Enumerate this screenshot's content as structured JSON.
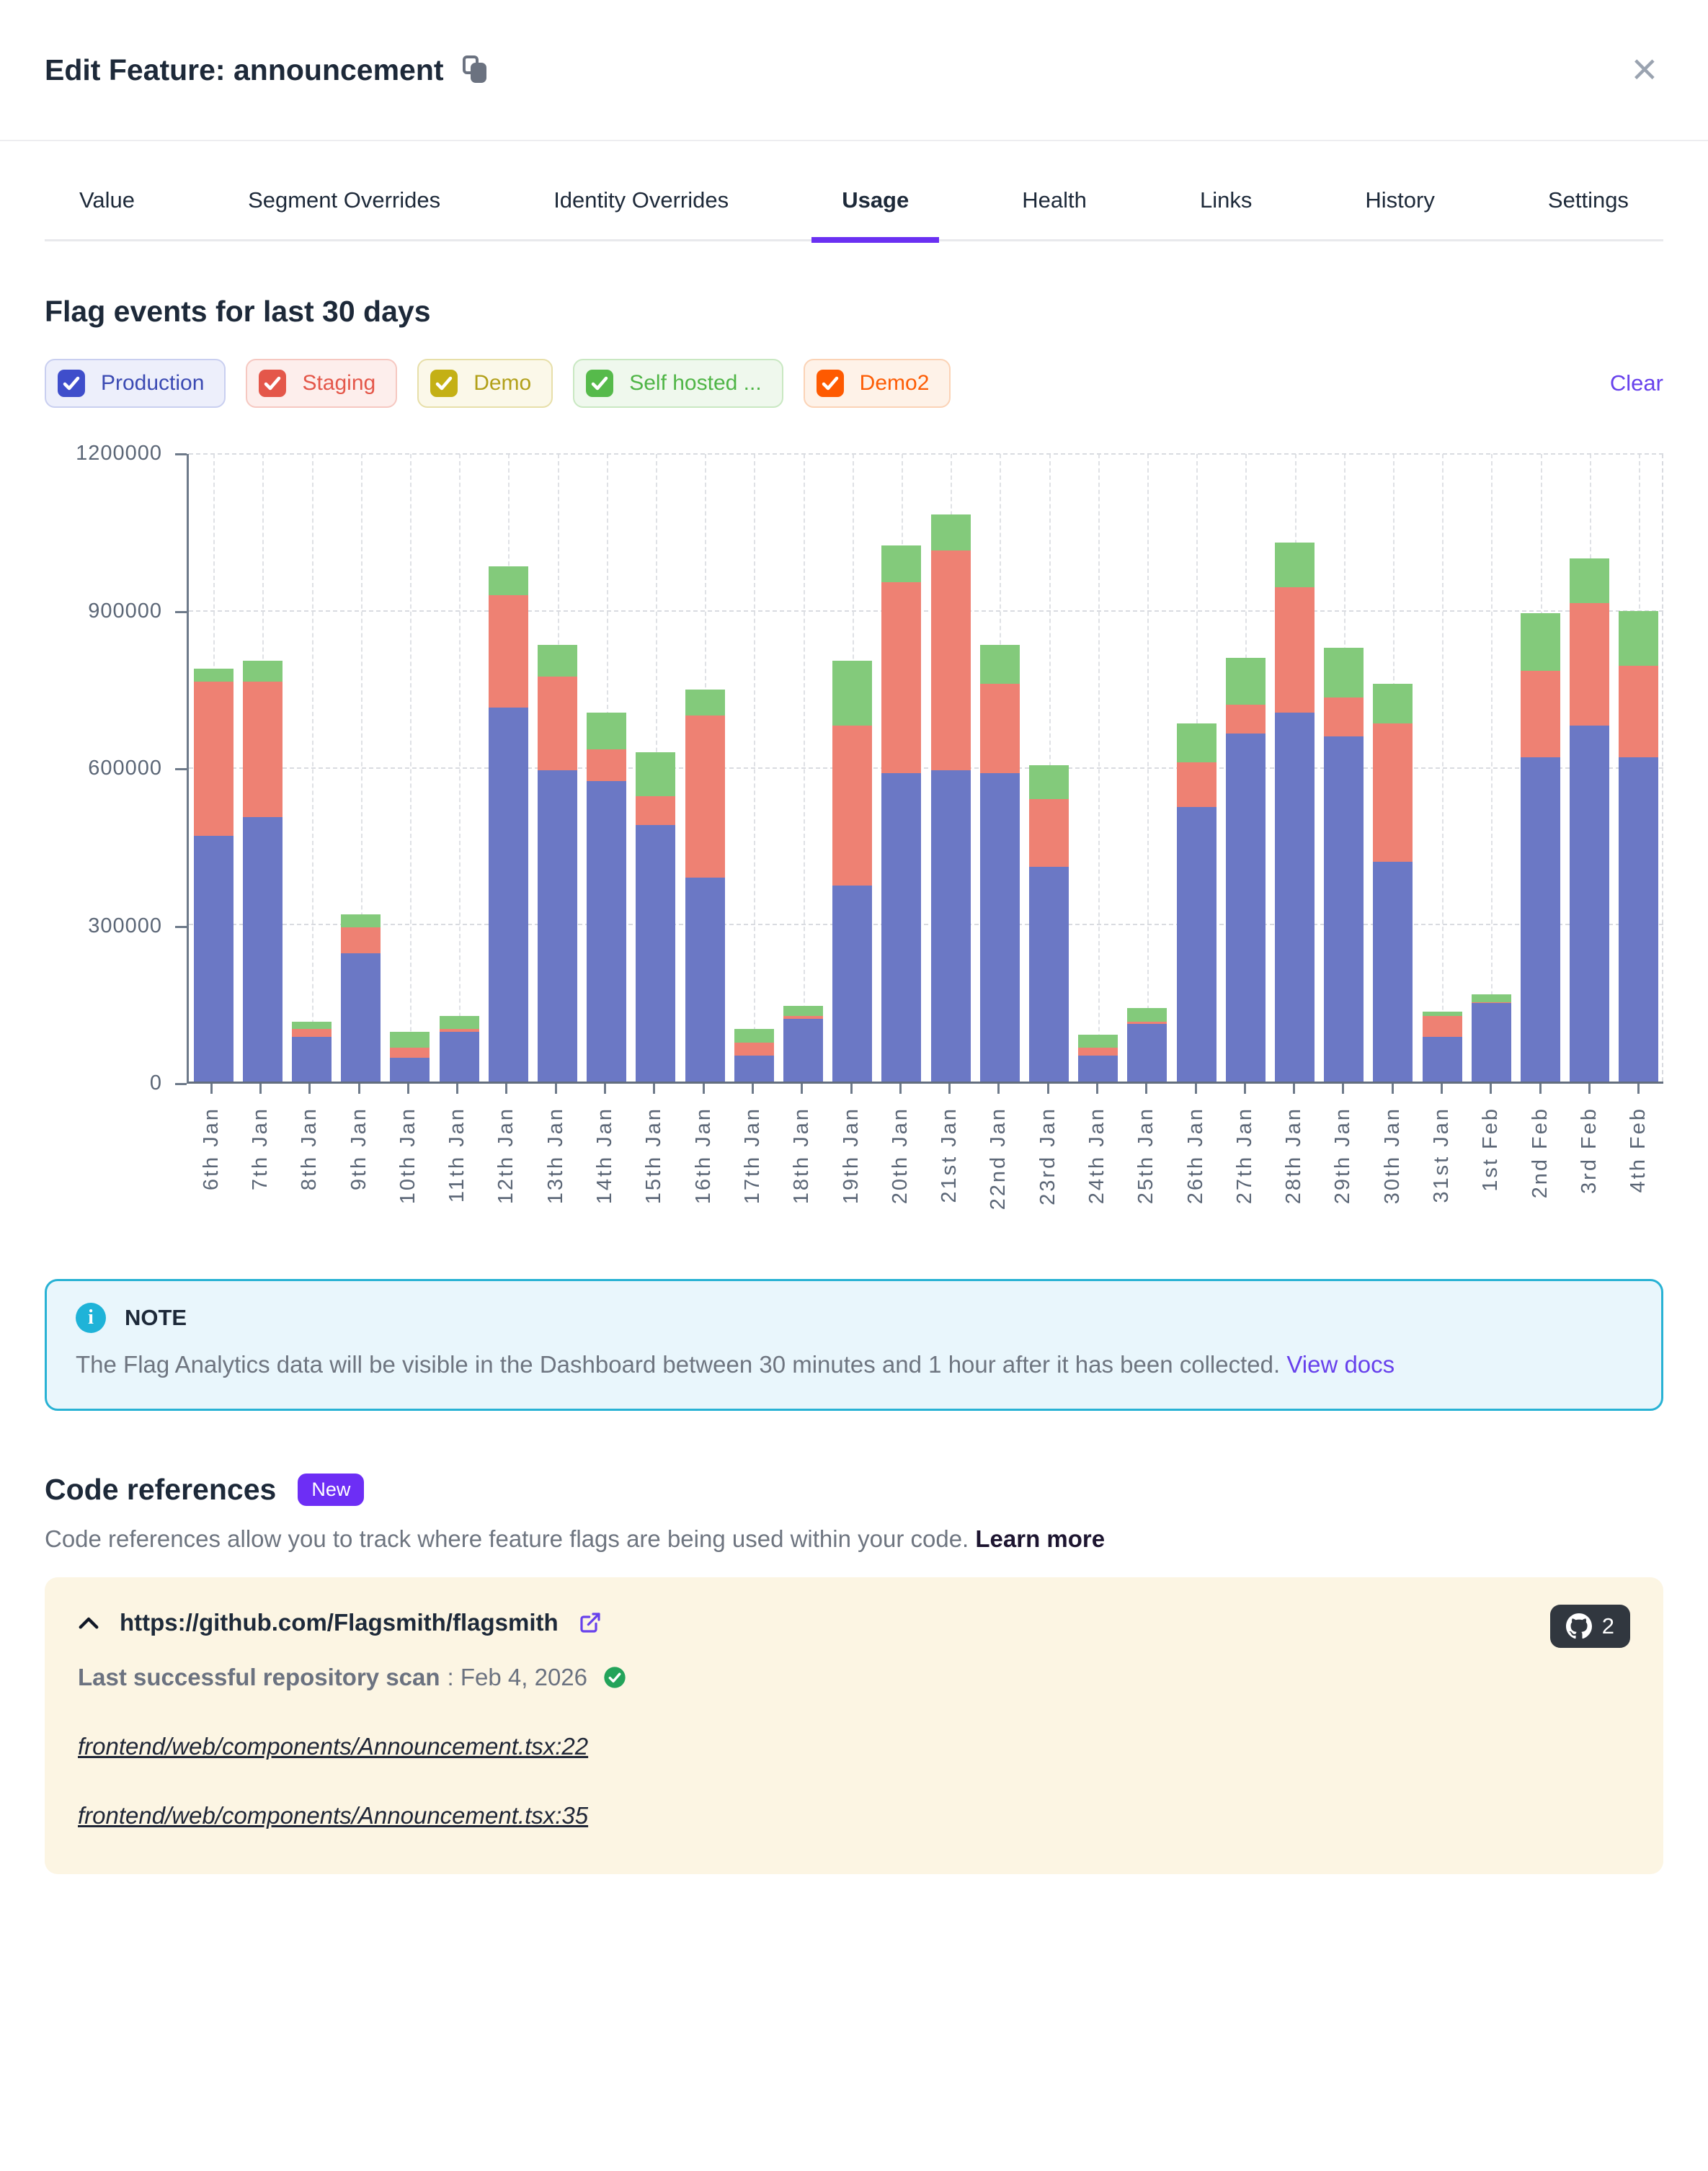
{
  "modal": {
    "title": "Edit Feature: announcement",
    "close_label": "×"
  },
  "tabs": [
    {
      "label": "Value",
      "active": false
    },
    {
      "label": "Segment Overrides",
      "active": false
    },
    {
      "label": "Identity Overrides",
      "active": false
    },
    {
      "label": "Usage",
      "active": true
    },
    {
      "label": "Health",
      "active": false
    },
    {
      "label": "Links",
      "active": false
    },
    {
      "label": "History",
      "active": false
    },
    {
      "label": "Settings",
      "active": false
    }
  ],
  "usage": {
    "heading": "Flag events for last 30 days",
    "clear_label": "Clear",
    "environments": [
      {
        "label": "Production",
        "checked": true,
        "bg": "#edeffb",
        "border": "#c9cff0",
        "text": "#3b4ab3",
        "check": "#3f4ecb"
      },
      {
        "label": "Staging",
        "checked": true,
        "bg": "#fdeeec",
        "border": "#f6c8c1",
        "text": "#e4574a",
        "check": "#e4574a"
      },
      {
        "label": "Demo",
        "checked": true,
        "bg": "#fbf8e9",
        "border": "#e7dfa9",
        "text": "#b2a019",
        "check": "#c4b015"
      },
      {
        "label": "Self hosted ...",
        "checked": true,
        "bg": "#eff8ed",
        "border": "#c9e8c2",
        "text": "#4fb546",
        "check": "#56ba4b"
      },
      {
        "label": "Demo2",
        "checked": true,
        "bg": "#fef2e8",
        "border": "#fbd3b6",
        "text": "#fd5c04",
        "check": "#fe5a01"
      }
    ]
  },
  "chart_data": {
    "type": "bar",
    "stacked": true,
    "title": "Flag events for last 30 days",
    "grid": "dashed",
    "ylim": [
      0,
      1200000
    ],
    "ytick_labels": [
      "0",
      "300000",
      "600000",
      "900000",
      "1200000"
    ],
    "ytick_values": [
      0,
      300000,
      600000,
      900000,
      1200000
    ],
    "categories": [
      "6th Jan",
      "7th Jan",
      "8th Jan",
      "9th Jan",
      "10th Jan",
      "11th Jan",
      "12th Jan",
      "13th Jan",
      "14th Jan",
      "15th Jan",
      "16th Jan",
      "17th Jan",
      "18th Jan",
      "19th Jan",
      "20th Jan",
      "21st Jan",
      "22nd Jan",
      "23rd Jan",
      "24th Jan",
      "25th Jan",
      "26th Jan",
      "27th Jan",
      "28th Jan",
      "29th Jan",
      "30th Jan",
      "31st Jan",
      "1st Feb",
      "2nd Feb",
      "3rd Feb",
      "4th Feb"
    ],
    "series": [
      {
        "name": "Production",
        "color": "#6b78c5",
        "values": [
          470000,
          505000,
          85000,
          245000,
          45000,
          95000,
          715000,
          595000,
          575000,
          490000,
          390000,
          50000,
          120000,
          375000,
          590000,
          595000,
          590000,
          410000,
          50000,
          110000,
          525000,
          665000,
          705000,
          660000,
          420000,
          85000,
          150000,
          620000,
          680000,
          620000
        ]
      },
      {
        "name": "Staging",
        "color": "#ee8173",
        "values": [
          295000,
          260000,
          15000,
          50000,
          20000,
          5000,
          215000,
          180000,
          60000,
          55000,
          310000,
          25000,
          5000,
          305000,
          365000,
          420000,
          170000,
          130000,
          15000,
          5000,
          85000,
          55000,
          240000,
          75000,
          265000,
          40000,
          2000,
          165000,
          235000,
          175000
        ]
      },
      {
        "name": "Self hosted",
        "color": "#83ca7b",
        "values": [
          25000,
          40000,
          15000,
          25000,
          30000,
          25000,
          55000,
          60000,
          70000,
          85000,
          50000,
          25000,
          20000,
          125000,
          70000,
          70000,
          75000,
          65000,
          25000,
          25000,
          75000,
          90000,
          85000,
          95000,
          75000,
          8000,
          15000,
          110000,
          85000,
          105000
        ]
      }
    ],
    "legend_position": "top-checkboxes"
  },
  "note": {
    "title": "NOTE",
    "body": "The Flag Analytics data will be visible in the Dashboard between 30 minutes and 1 hour after it has been collected.",
    "link_label": "View docs",
    "info_glyph": "i"
  },
  "code_references": {
    "heading": "Code references",
    "badge": "New",
    "description": "Code references allow you to track where feature flags are being used within your code.",
    "learn_more_label": "Learn more",
    "repo": {
      "url": "https://github.com/Flagsmith/flagsmith",
      "count": "2",
      "scan_label": "Last successful repository scan",
      "scan_value": ": Feb 4, 2026",
      "files": [
        "frontend/web/components/Announcement.tsx:22",
        "frontend/web/components/Announcement.tsx:35"
      ]
    }
  }
}
